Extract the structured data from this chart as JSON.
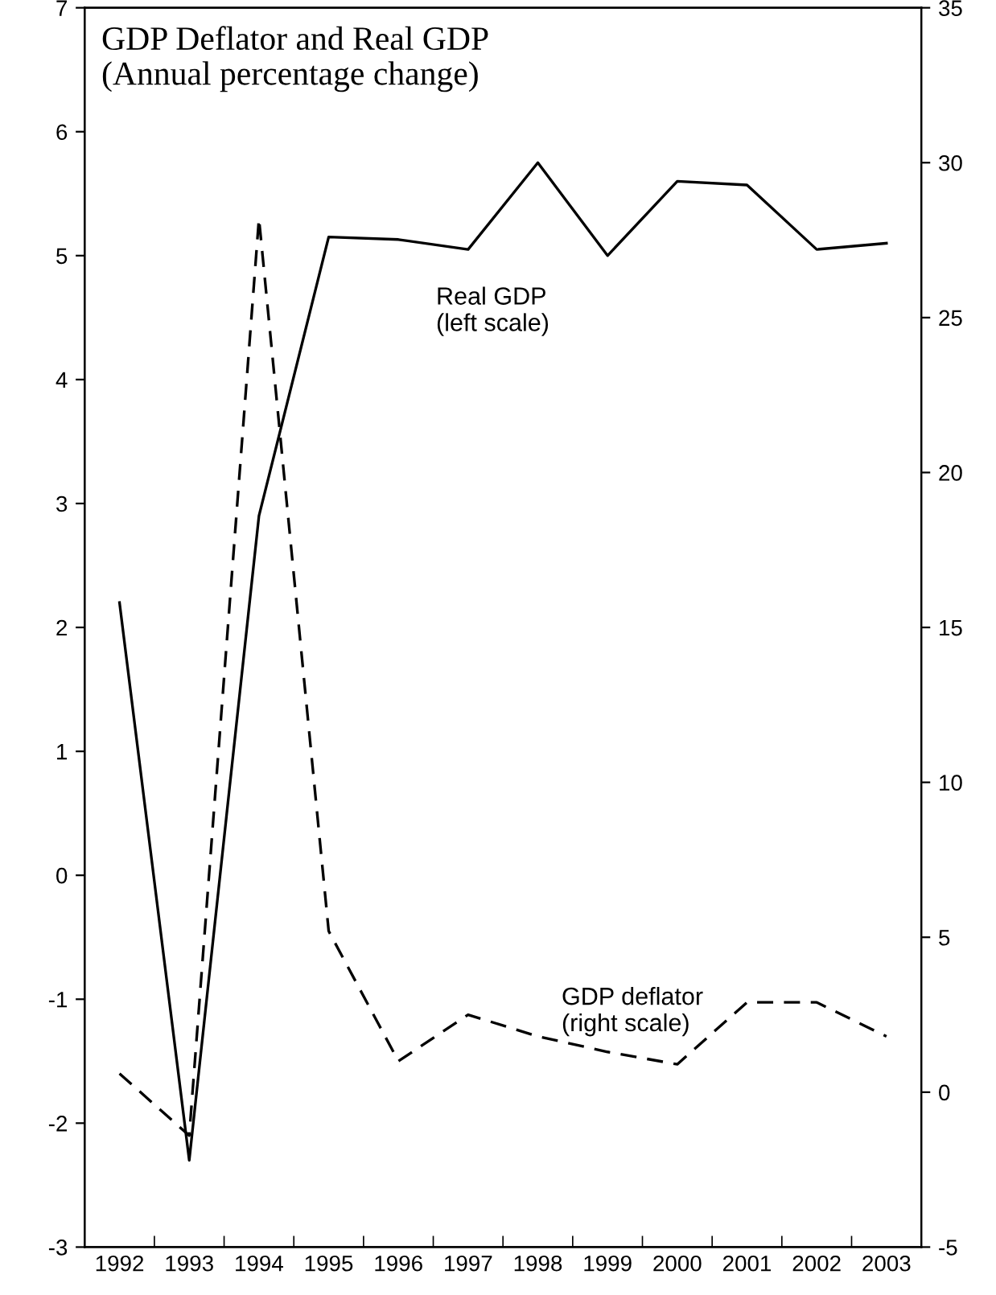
{
  "chart_data": {
    "type": "line",
    "title": "GDP Deflator and Real GDP\n(Annual percentage change)",
    "categories": [
      "1992",
      "1993",
      "1994",
      "1995",
      "1996",
      "1997",
      "1998",
      "1999",
      "2000",
      "2001",
      "2002",
      "2003"
    ],
    "series": [
      {
        "color": "#000000",
        "line_style": "solid",
        "values": [
          2.2,
          -2.3,
          2.9,
          5.15,
          5.13,
          5.05,
          5.75,
          5.0,
          5.6,
          5.57,
          5.05,
          5.1
        ]
      },
      {
        "color": "#000000",
        "line_style": "dashed",
        "axis": "y2",
        "values": [
          0.6,
          -1.4,
          28.2,
          5.2,
          1.0,
          2.5,
          1.8,
          1.3,
          0.9,
          2.9,
          2.9,
          1.8
        ]
      }
    ],
    "annotations": [
      "Real GDP\n(left scale)",
      "GDP deflator\n(right scale)"
    ],
    "ylim": [
      -3,
      7
    ],
    "yticks": [
      -3,
      -2,
      -1,
      0,
      1,
      2,
      3,
      4,
      5,
      6,
      7
    ],
    "y2lim": [
      -5,
      35
    ],
    "y2ticks": [
      -5,
      0,
      5,
      10,
      15,
      20,
      25,
      30,
      35
    ],
    "grid": false,
    "legend": false,
    "marker": "none"
  }
}
